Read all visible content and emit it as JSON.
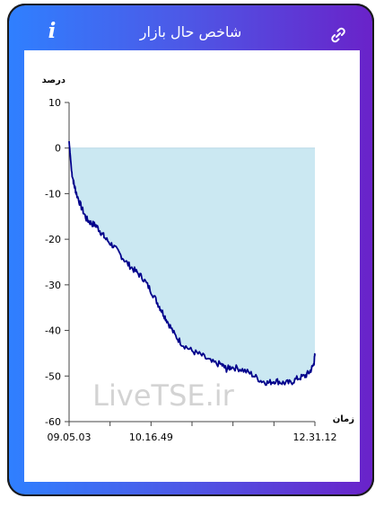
{
  "header": {
    "title": "شاخص حال بازار",
    "info_label": "i",
    "link_icon": "link-icon"
  },
  "colors": {
    "frame_start": "#2f80ff",
    "frame_end": "#6a22c9",
    "line": "#00008b",
    "fill": "#cbe8f2"
  },
  "watermark": "LiveTSE.ir",
  "chart_data": {
    "type": "area",
    "ylabel": "درصد",
    "xlabel": "زمان",
    "ylim": [
      -60,
      10
    ],
    "y_ticks": [
      "10",
      "0",
      "-10",
      "-20",
      "-30",
      "-40",
      "-50",
      "-60"
    ],
    "x_tick_labels": [
      "09.05.03",
      "10.16.49",
      "12.31.12"
    ],
    "grid": false,
    "baseline": 0,
    "series": [
      {
        "x": [
          0,
          0.01,
          0.02,
          0.03,
          0.05,
          0.07,
          0.09,
          0.11,
          0.13,
          0.15,
          0.18,
          0.21,
          0.24,
          0.27,
          0.3,
          0.33,
          0.36,
          0.38,
          0.4,
          0.43,
          0.46,
          0.5,
          0.54,
          0.58,
          0.62,
          0.64,
          0.66,
          0.7,
          0.74,
          0.78,
          0.81,
          0.84,
          0.87,
          0.9,
          0.93,
          0.96,
          0.98,
          0.995,
          1.0
        ],
        "values": [
          1.5,
          -5,
          -8,
          -10,
          -13,
          -15.5,
          -16.5,
          -17,
          -18.5,
          -20,
          -21.5,
          -23.5,
          -25.5,
          -27,
          -28.5,
          -31,
          -34,
          -36,
          -38,
          -41,
          -43,
          -44.5,
          -45.5,
          -47,
          -47.5,
          -48.5,
          -48,
          -48.5,
          -49.5,
          -51,
          -51.5,
          -51,
          -51.5,
          -51.5,
          -50.5,
          -50,
          -49,
          -47.5,
          -45.5
        ]
      }
    ]
  }
}
